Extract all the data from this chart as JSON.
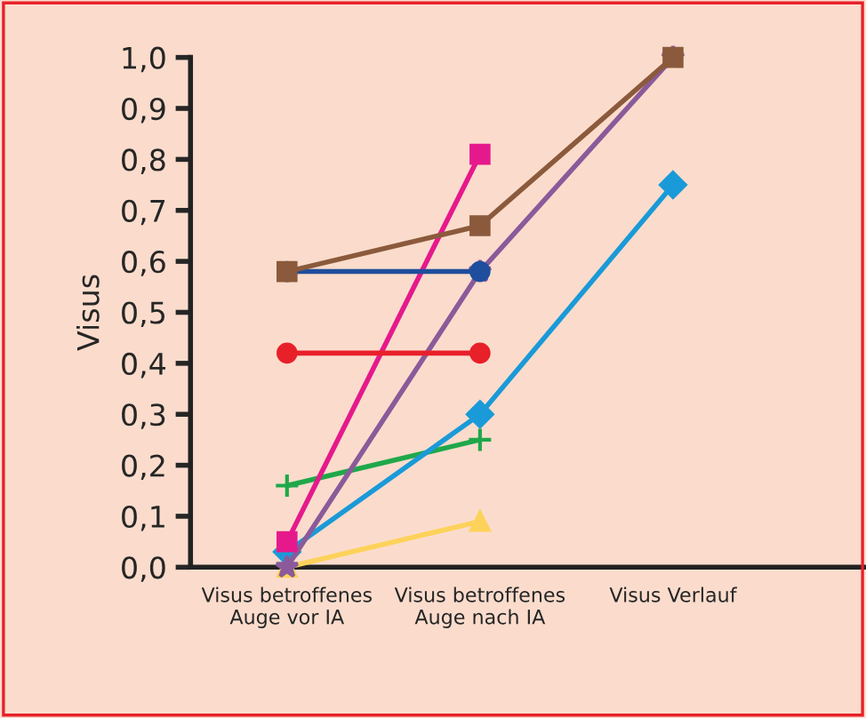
{
  "chart_data": {
    "type": "line",
    "ylabel": "Visus",
    "categories": [
      "Visus betroffenes\nAuge vor IA",
      "Visus betroffenes\nAuge nach IA",
      "Visus Verlauf"
    ],
    "ylim": [
      0,
      1.0
    ],
    "yticks": [
      {
        "value": 0,
        "label": "0,0"
      },
      {
        "value": 0.1,
        "label": "0,1"
      },
      {
        "value": 0.2,
        "label": "0,2"
      },
      {
        "value": 0.3,
        "label": "0,3"
      },
      {
        "value": 0.4,
        "label": "0,4"
      },
      {
        "value": 0.5,
        "label": "0,5"
      },
      {
        "value": 0.6,
        "label": "0,6"
      },
      {
        "value": 0.7,
        "label": "0,7"
      },
      {
        "value": 0.8,
        "label": "0,8"
      },
      {
        "value": 0.9,
        "label": "0,9"
      },
      {
        "value": 1.0,
        "label": "1,0"
      }
    ],
    "grid": false,
    "legend": false,
    "line_style": "solid",
    "series": [
      {
        "color": "#8b5a3c",
        "marker": "square",
        "values": [
          0.58,
          0.67,
          1.0
        ]
      },
      {
        "color": "#1f4e9c",
        "marker": "circle",
        "values": [
          0.58,
          0.58,
          null
        ]
      },
      {
        "color": "#e8202a",
        "marker": "circle",
        "values": [
          0.42,
          0.42,
          null
        ]
      },
      {
        "color": "#e6198c",
        "marker": "square",
        "values": [
          0.05,
          0.81,
          null
        ]
      },
      {
        "color": "#8a5a9a",
        "marker": "star",
        "values": [
          0.0,
          0.58,
          1.0
        ]
      },
      {
        "color": "#1a9ad8",
        "marker": "diamond",
        "values": [
          0.03,
          0.3,
          0.75
        ]
      },
      {
        "color": "#1fa84a",
        "marker": "cross",
        "values": [
          0.16,
          0.25,
          null
        ]
      },
      {
        "color": "#fdd25a",
        "marker": "triangle",
        "values": [
          0.0,
          0.09,
          null
        ]
      }
    ]
  }
}
